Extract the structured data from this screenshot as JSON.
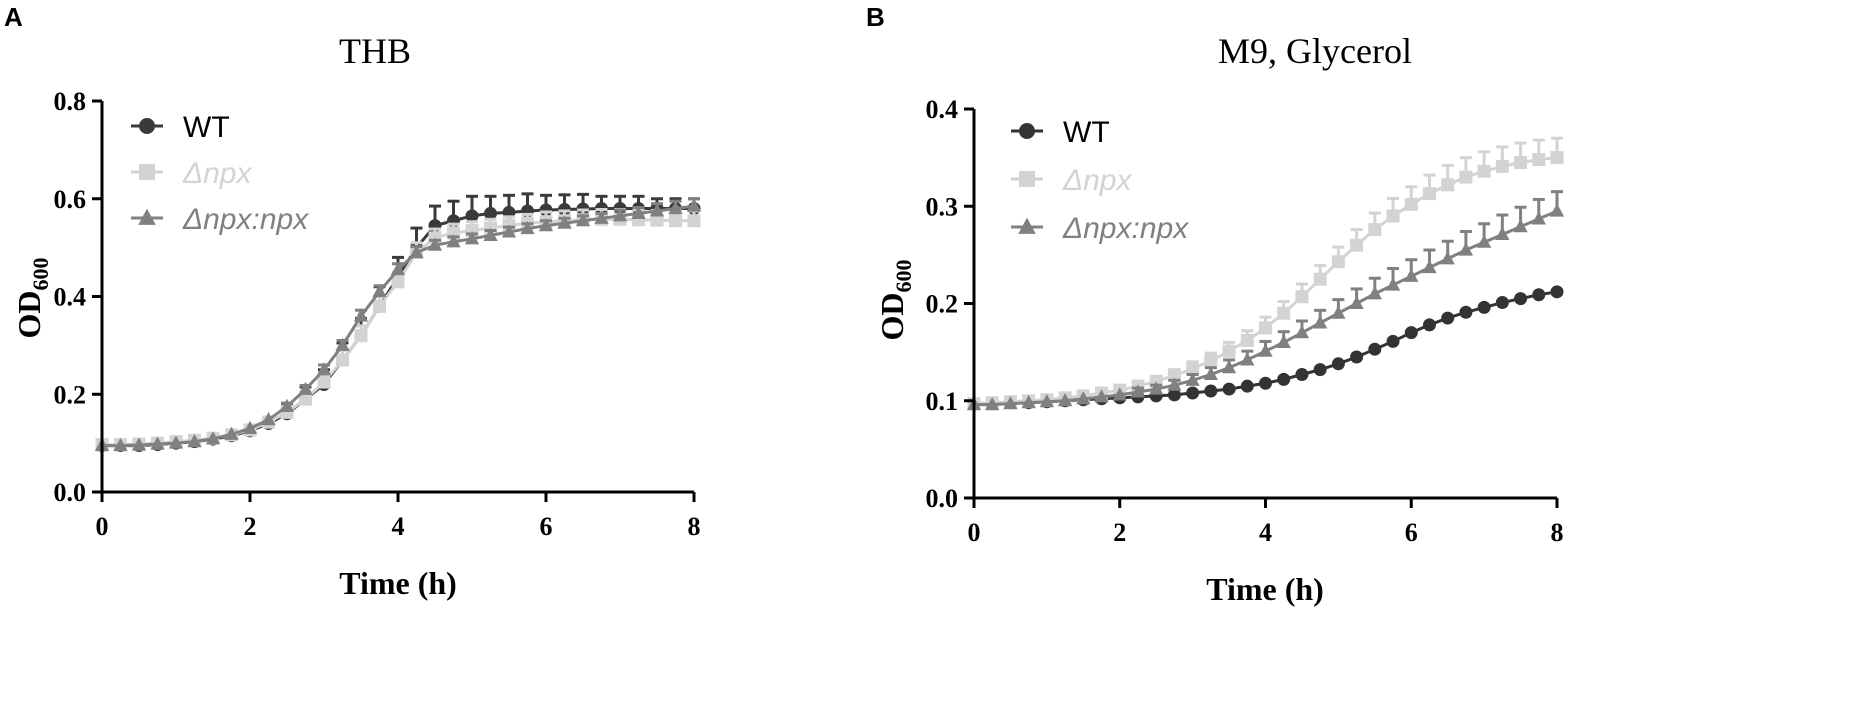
{
  "chart_data": [
    {
      "panel": "A",
      "type": "line",
      "title": "THB",
      "xlabel": "Time (h)",
      "ylabel_main": "OD",
      "ylabel_sub": "600",
      "xlim": [
        0,
        8
      ],
      "ylim": [
        0.0,
        0.8
      ],
      "xticks": [
        "0",
        "2",
        "4",
        "6",
        "8"
      ],
      "yticks": [
        "0.0",
        "0.2",
        "0.4",
        "0.6",
        "0.8"
      ],
      "legend_position": "top-left",
      "x": [
        0,
        0.25,
        0.5,
        0.75,
        1,
        1.25,
        1.5,
        1.75,
        2,
        2.25,
        2.5,
        2.75,
        3,
        3.25,
        3.5,
        3.75,
        4,
        4.25,
        4.5,
        4.75,
        5,
        5.25,
        5.5,
        5.75,
        6,
        6.25,
        6.5,
        6.75,
        7,
        7.25,
        7.5,
        7.75,
        8
      ],
      "series": [
        {
          "name": "WT",
          "marker": "circle",
          "color": "#3a3a3a",
          "values": [
            0.095,
            0.095,
            0.095,
            0.097,
            0.1,
            0.103,
            0.108,
            0.115,
            0.125,
            0.14,
            0.16,
            0.19,
            0.22,
            0.27,
            0.32,
            0.38,
            0.44,
            0.5,
            0.545,
            0.555,
            0.565,
            0.57,
            0.572,
            0.575,
            0.577,
            0.578,
            0.579,
            0.58,
            0.58,
            0.58,
            0.58,
            0.58,
            0.58
          ],
          "errors": [
            0.003,
            0.003,
            0.003,
            0.003,
            0.003,
            0.004,
            0.004,
            0.005,
            0.008,
            0.012,
            0.018,
            0.025,
            0.03,
            0.035,
            0.035,
            0.04,
            0.04,
            0.04,
            0.04,
            0.04,
            0.04,
            0.035,
            0.035,
            0.035,
            0.03,
            0.03,
            0.03,
            0.025,
            0.025,
            0.025,
            0.02,
            0.02,
            0.02
          ]
        },
        {
          "name": "Δnpx",
          "marker": "square",
          "color": "#d3d3d3",
          "values": [
            0.097,
            0.097,
            0.098,
            0.1,
            0.103,
            0.106,
            0.11,
            0.117,
            0.127,
            0.143,
            0.163,
            0.19,
            0.225,
            0.27,
            0.32,
            0.38,
            0.43,
            0.49,
            0.52,
            0.53,
            0.535,
            0.54,
            0.545,
            0.55,
            0.553,
            0.555,
            0.557,
            0.558,
            0.558,
            0.557,
            0.556,
            0.555,
            0.555
          ],
          "errors": [
            0.003,
            0.003,
            0.003,
            0.003,
            0.003,
            0.004,
            0.004,
            0.005,
            0.007,
            0.01,
            0.012,
            0.015,
            0.018,
            0.02,
            0.02,
            0.02,
            0.02,
            0.02,
            0.018,
            0.018,
            0.018,
            0.018,
            0.018,
            0.018,
            0.02,
            0.02,
            0.02,
            0.02,
            0.02,
            0.02,
            0.02,
            0.02,
            0.02
          ]
        },
        {
          "name": "Δnpx:npx",
          "marker": "triangle",
          "color": "#808080",
          "values": [
            0.095,
            0.095,
            0.096,
            0.098,
            0.1,
            0.103,
            0.109,
            0.118,
            0.13,
            0.148,
            0.175,
            0.21,
            0.25,
            0.3,
            0.36,
            0.41,
            0.455,
            0.49,
            0.505,
            0.512,
            0.518,
            0.525,
            0.532,
            0.539,
            0.545,
            0.55,
            0.555,
            0.56,
            0.565,
            0.57,
            0.575,
            0.58,
            0.585
          ],
          "errors": [
            0.002,
            0.002,
            0.002,
            0.002,
            0.003,
            0.003,
            0.003,
            0.004,
            0.005,
            0.006,
            0.007,
            0.008,
            0.01,
            0.01,
            0.012,
            0.012,
            0.012,
            0.012,
            0.01,
            0.01,
            0.01,
            0.01,
            0.01,
            0.01,
            0.01,
            0.01,
            0.01,
            0.01,
            0.012,
            0.012,
            0.015,
            0.015,
            0.015
          ]
        }
      ]
    },
    {
      "panel": "B",
      "type": "line",
      "title": "M9, Glycerol",
      "xlabel": "Time (h)",
      "ylabel_main": "OD",
      "ylabel_sub": "600",
      "xlim": [
        0,
        8
      ],
      "ylim": [
        0.0,
        0.4
      ],
      "xticks": [
        "0",
        "2",
        "4",
        "6",
        "8"
      ],
      "yticks": [
        "0.0",
        "0.1",
        "0.2",
        "0.3",
        "0.4"
      ],
      "legend_position": "top-left",
      "x": [
        0,
        0.25,
        0.5,
        0.75,
        1,
        1.25,
        1.5,
        1.75,
        2,
        2.25,
        2.5,
        2.75,
        3,
        3.25,
        3.5,
        3.75,
        4,
        4.25,
        4.5,
        4.75,
        5,
        5.25,
        5.5,
        5.75,
        6,
        6.25,
        6.5,
        6.75,
        7,
        7.25,
        7.5,
        7.75,
        8
      ],
      "series": [
        {
          "name": "WT",
          "marker": "circle",
          "color": "#333333",
          "values": [
            0.097,
            0.097,
            0.098,
            0.098,
            0.099,
            0.1,
            0.101,
            0.102,
            0.103,
            0.104,
            0.105,
            0.106,
            0.108,
            0.11,
            0.112,
            0.115,
            0.118,
            0.122,
            0.127,
            0.132,
            0.138,
            0.145,
            0.153,
            0.161,
            0.17,
            0.178,
            0.185,
            0.191,
            0.196,
            0.201,
            0.205,
            0.209,
            0.212
          ],
          "errors": [
            0.002,
            0.002,
            0.002,
            0.002,
            0.002,
            0.002,
            0.002,
            0.002,
            0.002,
            0.002,
            0.002,
            0.002,
            0.002,
            0.002,
            0.002,
            0.002,
            0.002,
            0.002,
            0.002,
            0.003,
            0.003,
            0.003,
            0.003,
            0.003,
            0.003,
            0.003,
            0.003,
            0.003,
            0.003,
            0.003,
            0.003,
            0.003,
            0.003
          ]
        },
        {
          "name": "Δnpx",
          "marker": "square",
          "color": "#d3d3d3",
          "values": [
            0.097,
            0.098,
            0.099,
            0.1,
            0.101,
            0.103,
            0.105,
            0.108,
            0.111,
            0.115,
            0.12,
            0.126,
            0.133,
            0.141,
            0.151,
            0.162,
            0.175,
            0.19,
            0.207,
            0.225,
            0.243,
            0.26,
            0.276,
            0.29,
            0.302,
            0.313,
            0.322,
            0.33,
            0.336,
            0.341,
            0.345,
            0.348,
            0.35
          ],
          "errors": [
            0.002,
            0.002,
            0.002,
            0.002,
            0.003,
            0.003,
            0.003,
            0.004,
            0.004,
            0.005,
            0.005,
            0.006,
            0.007,
            0.008,
            0.009,
            0.01,
            0.011,
            0.012,
            0.013,
            0.014,
            0.015,
            0.016,
            0.017,
            0.018,
            0.018,
            0.019,
            0.02,
            0.02,
            0.02,
            0.02,
            0.02,
            0.02,
            0.02
          ]
        },
        {
          "name": "Δnpx:npx",
          "marker": "triangle",
          "color": "#808080",
          "values": [
            0.096,
            0.096,
            0.097,
            0.098,
            0.099,
            0.1,
            0.102,
            0.104,
            0.106,
            0.109,
            0.112,
            0.116,
            0.121,
            0.127,
            0.134,
            0.142,
            0.151,
            0.16,
            0.17,
            0.18,
            0.19,
            0.2,
            0.21,
            0.219,
            0.228,
            0.237,
            0.246,
            0.255,
            0.263,
            0.271,
            0.279,
            0.287,
            0.295
          ],
          "errors": [
            0.002,
            0.002,
            0.002,
            0.002,
            0.002,
            0.002,
            0.002,
            0.003,
            0.003,
            0.004,
            0.004,
            0.005,
            0.006,
            0.007,
            0.008,
            0.009,
            0.01,
            0.011,
            0.012,
            0.013,
            0.014,
            0.015,
            0.016,
            0.017,
            0.017,
            0.018,
            0.018,
            0.019,
            0.019,
            0.02,
            0.02,
            0.02,
            0.02
          ]
        }
      ]
    }
  ]
}
